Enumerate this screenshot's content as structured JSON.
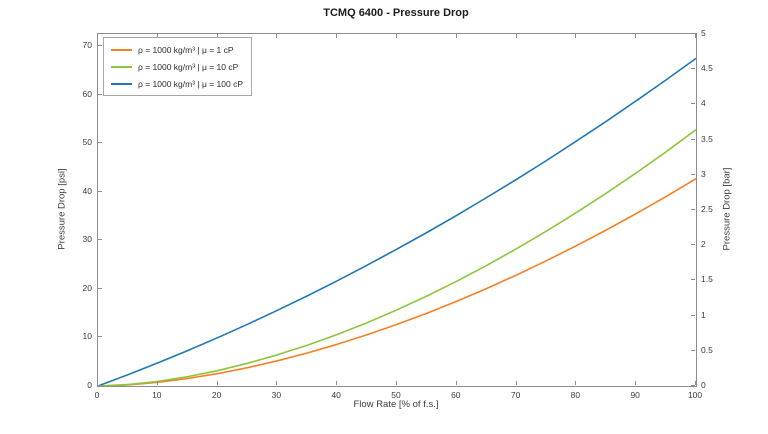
{
  "title": "TCMQ 6400 - Pressure Drop",
  "axes": {
    "x": {
      "label": "Flow Rate [% of f.s.]",
      "ticks": [
        0,
        10,
        20,
        30,
        40,
        50,
        60,
        70,
        80,
        90,
        100
      ],
      "min": 0,
      "max": 100
    },
    "y_left": {
      "label": "Pressure Drop [psi]",
      "ticks": [
        0,
        10,
        20,
        30,
        40,
        50,
        60,
        70
      ],
      "min": 0,
      "max": 72.52
    },
    "y_right": {
      "label": "Pressure Drop [bar]",
      "ticks": [
        0,
        0.5,
        1,
        1.5,
        2,
        2.5,
        3,
        3.5,
        4,
        4.5,
        5
      ],
      "min": 0,
      "max": 5
    }
  },
  "chart_data": {
    "type": "line",
    "title": "TCMQ 6400 - Pressure Drop",
    "xlabel": "Flow Rate [% of f.s.]",
    "ylabel_left": "Pressure Drop [psi]",
    "ylabel_right": "Pressure Drop [bar]",
    "xlim": [
      0,
      100
    ],
    "ylim_left_psi": [
      0,
      72.5
    ],
    "ylim_right_bar": [
      0,
      5
    ],
    "grid": false,
    "legend_position": "top-left",
    "x_percent_fs": [
      0,
      5,
      10,
      15,
      20,
      25,
      30,
      35,
      40,
      45,
      50,
      55,
      60,
      65,
      70,
      75,
      80,
      85,
      90,
      95,
      100
    ],
    "series": [
      {
        "name": "ρ = 1000 kg/m³ | μ = 1 cP",
        "color": "#F58025",
        "values_psi": [
          0,
          0.23,
          0.76,
          1.54,
          2.56,
          3.77,
          5.19,
          6.8,
          8.59,
          10.56,
          12.69,
          15.0,
          17.47,
          20.09,
          22.87,
          25.81,
          28.9,
          32.13,
          35.51,
          39.03,
          42.7
        ]
      },
      {
        "name": "ρ = 1000 kg/m³ | μ = 10 cP",
        "color": "#8CC63E",
        "values_psi": [
          0,
          0.28,
          0.94,
          1.91,
          3.16,
          4.67,
          6.42,
          8.41,
          10.62,
          13.05,
          15.7,
          18.55,
          21.6,
          24.84,
          28.28,
          31.92,
          35.73,
          39.73,
          43.91,
          48.26,
          52.8
        ]
      },
      {
        "name": "ρ = 1000 kg/m³ | μ = 100 cP",
        "color": "#1F77B4",
        "values_psi": [
          0,
          2.32,
          4.75,
          7.3,
          9.95,
          12.71,
          15.59,
          18.57,
          21.67,
          24.88,
          28.2,
          31.63,
          35.17,
          38.83,
          42.59,
          46.46,
          50.45,
          54.54,
          58.75,
          63.06,
          67.5
        ]
      }
    ]
  },
  "colors": {
    "axis": "#8c8c8c",
    "tick_text": "#3c3c3c",
    "title_text": "#1c1c1c",
    "background": "#ffffff"
  }
}
